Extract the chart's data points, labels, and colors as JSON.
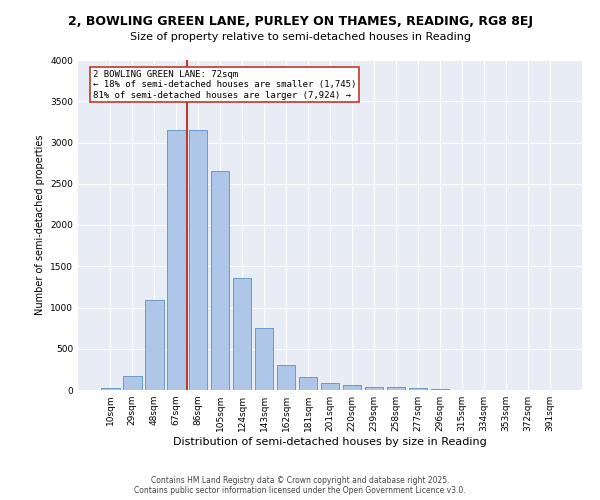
{
  "title_line1": "2, BOWLING GREEN LANE, PURLEY ON THAMES, READING, RG8 8EJ",
  "title_line2": "Size of property relative to semi-detached houses in Reading",
  "xlabel": "Distribution of semi-detached houses by size in Reading",
  "ylabel": "Number of semi-detached properties",
  "categories": [
    "10sqm",
    "29sqm",
    "48sqm",
    "67sqm",
    "86sqm",
    "105sqm",
    "124sqm",
    "143sqm",
    "162sqm",
    "181sqm",
    "201sqm",
    "220sqm",
    "239sqm",
    "258sqm",
    "277sqm",
    "296sqm",
    "315sqm",
    "334sqm",
    "353sqm",
    "372sqm",
    "391sqm"
  ],
  "values": [
    30,
    170,
    1090,
    3155,
    3155,
    2660,
    1360,
    750,
    305,
    160,
    90,
    60,
    40,
    35,
    30,
    10,
    5,
    5,
    3,
    2,
    2
  ],
  "bar_color": "#aec6e8",
  "bar_edgecolor": "#5a8fc2",
  "vline_color": "#c0392b",
  "vline_x": 3.5,
  "annotation_text": "2 BOWLING GREEN LANE: 72sqm\n← 18% of semi-detached houses are smaller (1,745)\n81% of semi-detached houses are larger (7,924) →",
  "annotation_box_facecolor": "#ffffff",
  "annotation_box_edgecolor": "#c0392b",
  "ylim_max": 4000,
  "yticks": [
    0,
    500,
    1000,
    1500,
    2000,
    2500,
    3000,
    3500,
    4000
  ],
  "axes_bg_color": "#e8edf5",
  "title_fontsize": 9,
  "subtitle_fontsize": 8,
  "xlabel_fontsize": 8,
  "ylabel_fontsize": 7,
  "tick_fontsize": 6.5,
  "annot_fontsize": 6.5,
  "footer_line1": "Contains HM Land Registry data © Crown copyright and database right 2025.",
  "footer_line2": "Contains public sector information licensed under the Open Government Licence v3.0.",
  "footer_fontsize": 5.5
}
